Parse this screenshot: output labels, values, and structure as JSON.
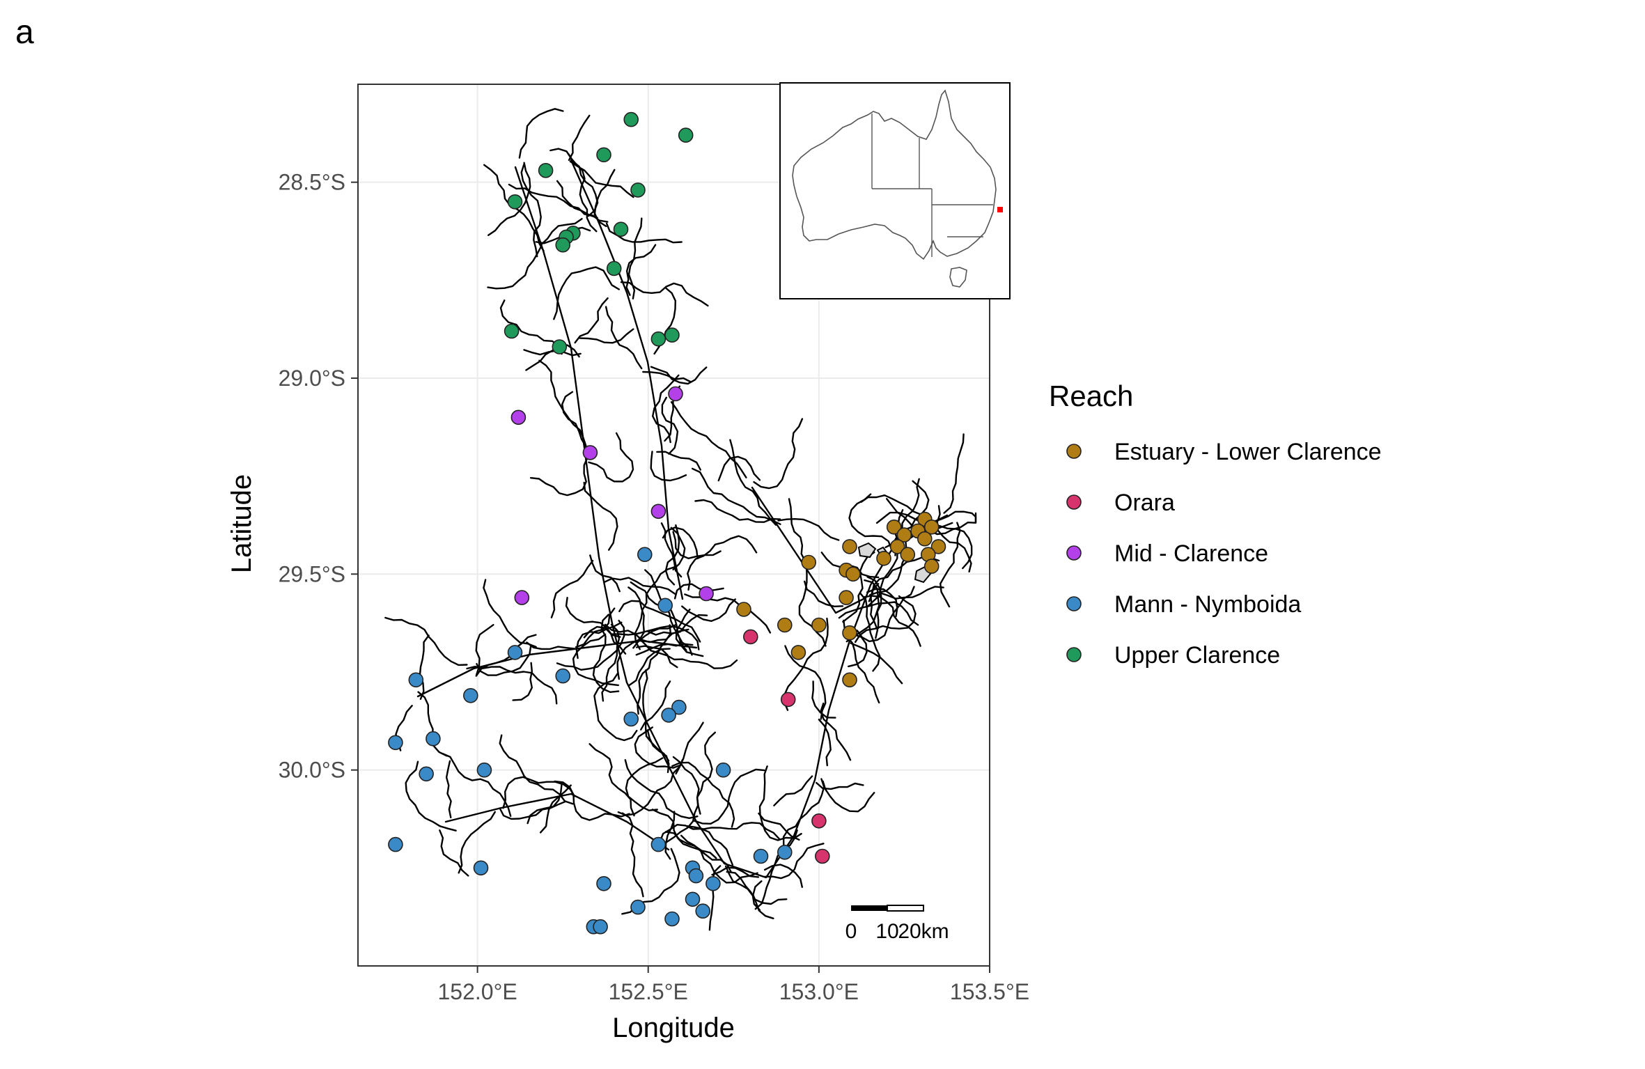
{
  "panel_tag": "a",
  "axes": {
    "xlabel": "Longitude",
    "ylabel": "Latitude",
    "x_ticks": [
      {
        "value": 152.0,
        "label": "152.0°E"
      },
      {
        "value": 152.5,
        "label": "152.5°E"
      },
      {
        "value": 153.0,
        "label": "153.0°E"
      },
      {
        "value": 153.5,
        "label": "153.5°E"
      }
    ],
    "y_ticks": [
      {
        "value": -28.5,
        "label": "28.5°S"
      },
      {
        "value": -29.0,
        "label": "29.0°S"
      },
      {
        "value": -29.5,
        "label": "29.5°S"
      },
      {
        "value": -30.0,
        "label": "30.0°S"
      }
    ],
    "xlim": [
      151.65,
      153.5
    ],
    "ylim": [
      -30.5,
      -28.25
    ],
    "grid": true
  },
  "legend": {
    "title": "Reach",
    "position": "right",
    "entries": [
      {
        "key": "estuary",
        "label": "Estuary - Lower Clarence",
        "color": "#B07D14"
      },
      {
        "key": "orara",
        "label": "Orara",
        "color": "#D7336C"
      },
      {
        "key": "mid",
        "label": "Mid - Clarence",
        "color": "#B340E8"
      },
      {
        "key": "mann",
        "label": "Mann - Nymboida",
        "color": "#3A8AC8"
      },
      {
        "key": "upper",
        "label": "Upper Clarence",
        "color": "#1F9A5A"
      }
    ]
  },
  "scale_bar": {
    "labels": [
      "0",
      "10",
      "20km"
    ]
  },
  "inset": {
    "description_visible": false,
    "highlight_color": "#FF0000"
  },
  "chart_data": {
    "type": "scatter",
    "xlabel": "Longitude",
    "ylabel": "Latitude",
    "xlim": [
      151.65,
      153.5
    ],
    "ylim": [
      -30.5,
      -28.25
    ],
    "series": [
      {
        "name": "Upper Clarence",
        "color": "#1F9A5A",
        "points": [
          [
            152.45,
            -28.34
          ],
          [
            152.61,
            -28.38
          ],
          [
            152.37,
            -28.43
          ],
          [
            152.2,
            -28.47
          ],
          [
            152.47,
            -28.52
          ],
          [
            152.11,
            -28.55
          ],
          [
            152.42,
            -28.62
          ],
          [
            152.28,
            -28.63
          ],
          [
            152.26,
            -28.64
          ],
          [
            152.25,
            -28.66
          ],
          [
            152.4,
            -28.72
          ],
          [
            152.1,
            -28.88
          ],
          [
            152.24,
            -28.92
          ],
          [
            152.53,
            -28.9
          ],
          [
            152.57,
            -28.89
          ]
        ]
      },
      {
        "name": "Mid - Clarence",
        "color": "#B340E8",
        "points": [
          [
            152.58,
            -29.04
          ],
          [
            152.12,
            -29.1
          ],
          [
            152.33,
            -29.19
          ],
          [
            152.53,
            -29.34
          ],
          [
            152.67,
            -29.55
          ],
          [
            152.13,
            -29.56
          ]
        ]
      },
      {
        "name": "Mann - Nymboida",
        "color": "#3A8AC8",
        "points": [
          [
            152.49,
            -29.45
          ],
          [
            152.55,
            -29.58
          ],
          [
            152.11,
            -29.7
          ],
          [
            152.25,
            -29.76
          ],
          [
            151.82,
            -29.77
          ],
          [
            151.98,
            -29.81
          ],
          [
            152.59,
            -29.84
          ],
          [
            152.56,
            -29.86
          ],
          [
            152.45,
            -29.87
          ],
          [
            151.87,
            -29.92
          ],
          [
            151.76,
            -29.93
          ],
          [
            152.72,
            -30.0
          ],
          [
            151.85,
            -30.01
          ],
          [
            152.02,
            -30.0
          ],
          [
            151.76,
            -30.19
          ],
          [
            152.53,
            -30.19
          ],
          [
            152.83,
            -30.22
          ],
          [
            152.9,
            -30.21
          ],
          [
            152.01,
            -30.25
          ],
          [
            152.63,
            -30.25
          ],
          [
            152.64,
            -30.27
          ],
          [
            152.37,
            -30.29
          ],
          [
            152.69,
            -30.29
          ],
          [
            152.63,
            -30.33
          ],
          [
            152.47,
            -30.35
          ],
          [
            152.66,
            -30.36
          ],
          [
            152.57,
            -30.38
          ],
          [
            152.34,
            -30.4
          ],
          [
            152.36,
            -30.4
          ]
        ]
      },
      {
        "name": "Orara",
        "color": "#D7336C",
        "points": [
          [
            152.8,
            -29.66
          ],
          [
            152.91,
            -29.82
          ],
          [
            153.0,
            -30.13
          ],
          [
            153.01,
            -30.22
          ]
        ]
      },
      {
        "name": "Estuary - Lower Clarence",
        "color": "#B07D14",
        "points": [
          [
            153.31,
            -29.36
          ],
          [
            153.22,
            -29.38
          ],
          [
            153.29,
            -29.39
          ],
          [
            153.33,
            -29.38
          ],
          [
            153.25,
            -29.4
          ],
          [
            153.31,
            -29.41
          ],
          [
            153.09,
            -29.43
          ],
          [
            153.23,
            -29.43
          ],
          [
            153.35,
            -29.43
          ],
          [
            153.26,
            -29.45
          ],
          [
            153.32,
            -29.45
          ],
          [
            153.19,
            -29.46
          ],
          [
            152.97,
            -29.47
          ],
          [
            153.33,
            -29.48
          ],
          [
            153.08,
            -29.49
          ],
          [
            153.1,
            -29.5
          ],
          [
            153.08,
            -29.56
          ],
          [
            152.78,
            -29.59
          ],
          [
            152.9,
            -29.63
          ],
          [
            153.0,
            -29.63
          ],
          [
            153.09,
            -29.65
          ],
          [
            152.94,
            -29.7
          ],
          [
            153.09,
            -29.77
          ]
        ]
      }
    ]
  }
}
